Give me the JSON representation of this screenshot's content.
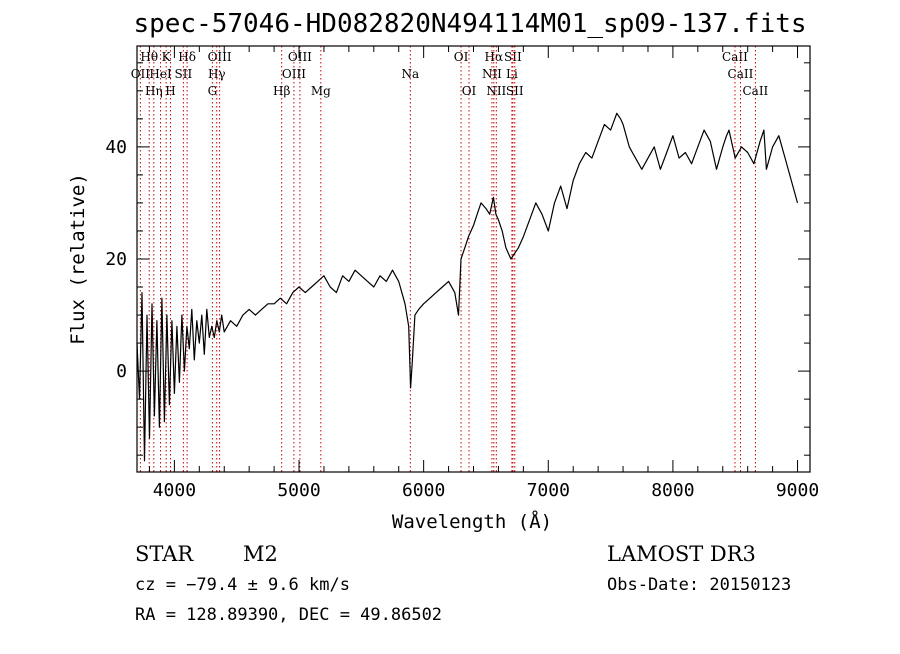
{
  "chart_data": {
    "type": "line",
    "title": "spec-57046-HD082820N494114M01_sp09-137.fits",
    "xlabel": "Wavelength (Å)",
    "ylabel": "Flux (relative)",
    "xlim": [
      3700,
      9100
    ],
    "ylim": [
      -18,
      58
    ],
    "x_ticks": [
      4000,
      5000,
      6000,
      7000,
      8000,
      9000
    ],
    "x_tick_labels": [
      "4000",
      "5000",
      "6000",
      "7000",
      "8000",
      "9000"
    ],
    "y_ticks": [
      0,
      20,
      40
    ],
    "y_tick_labels": [
      "0",
      "20",
      "40"
    ],
    "grid": false,
    "line_color": "#000000",
    "marker_color": "#cc0000",
    "series": [
      {
        "x": [
          3700,
          3720,
          3740,
          3760,
          3780,
          3800,
          3820,
          3840,
          3860,
          3880,
          3900,
          3920,
          3940,
          3960,
          3980,
          4000,
          4020,
          4040,
          4060,
          4080,
          4100,
          4120,
          4140,
          4160,
          4180,
          4200,
          4220,
          4240,
          4260,
          4280,
          4300,
          4320,
          4340,
          4360,
          4380,
          4400,
          4450,
          4500,
          4550,
          4600,
          4650,
          4700,
          4750,
          4800,
          4850,
          4900,
          4950,
          5000,
          5050,
          5100,
          5150,
          5200,
          5250,
          5300,
          5350,
          5400,
          5450,
          5500,
          5550,
          5600,
          5650,
          5700,
          5750,
          5800,
          5850,
          5880,
          5895,
          5910,
          5930,
          5960,
          6000,
          6050,
          6100,
          6150,
          6200,
          6250,
          6280,
          6300,
          6330,
          6360,
          6400,
          6430,
          6460,
          6500,
          6530,
          6560,
          6580,
          6600,
          6630,
          6660,
          6700,
          6730,
          6760,
          6800,
          6850,
          6900,
          6950,
          7000,
          7050,
          7100,
          7150,
          7200,
          7250,
          7300,
          7350,
          7400,
          7450,
          7500,
          7550,
          7580,
          7600,
          7650,
          7700,
          7750,
          7800,
          7850,
          7900,
          7950,
          8000,
          8050,
          8100,
          8150,
          8200,
          8250,
          8300,
          8350,
          8400,
          8430,
          8450,
          8500,
          8550,
          8600,
          8650,
          8700,
          8730,
          8750,
          8800,
          8850,
          8900,
          8950,
          9000
        ],
        "y": [
          5,
          -5,
          14,
          -16,
          10,
          -12,
          12,
          -8,
          9,
          -10,
          13,
          -9,
          10,
          -6,
          9,
          -4,
          8,
          -2,
          10,
          0,
          8,
          4,
          11,
          2,
          9,
          5,
          10,
          3,
          11,
          6,
          8,
          6,
          9,
          7,
          10,
          7,
          9,
          8,
          10,
          11,
          10,
          11,
          12,
          12,
          13,
          12,
          14,
          15,
          14,
          15,
          16,
          17,
          15,
          14,
          17,
          16,
          18,
          17,
          16,
          15,
          17,
          16,
          18,
          16,
          12,
          8,
          -3,
          2,
          10,
          11,
          12,
          13,
          14,
          15,
          16,
          14,
          10,
          20,
          22,
          24,
          26,
          28,
          30,
          29,
          28,
          31,
          28,
          27,
          25,
          22,
          20,
          21,
          22,
          24,
          27,
          30,
          28,
          25,
          30,
          33,
          29,
          34,
          37,
          39,
          38,
          41,
          44,
          43,
          46,
          45,
          44,
          40,
          38,
          36,
          38,
          40,
          36,
          39,
          42,
          38,
          39,
          37,
          40,
          43,
          41,
          36,
          40,
          42,
          43,
          38,
          40,
          39,
          37,
          41,
          43,
          36,
          40,
          42,
          38,
          34,
          30
        ],
        "stroke_width": 1.2
      }
    ],
    "line_markers": [
      {
        "label": "OII",
        "x": 3727,
        "row": 1
      },
      {
        "label": "Hθ",
        "x": 3798,
        "row": 0
      },
      {
        "label": "K",
        "x": 3934,
        "row": 0
      },
      {
        "label": "Hη",
        "x": 3835,
        "row": 2
      },
      {
        "label": "HeI",
        "x": 3889,
        "row": 1
      },
      {
        "label": "H",
        "x": 3969,
        "row": 2
      },
      {
        "label": "SII",
        "x": 4072,
        "row": 1
      },
      {
        "label": "Hδ",
        "x": 4102,
        "row": 0
      },
      {
        "label": "OIII",
        "x": 4363,
        "row": 0
      },
      {
        "label": "Hγ",
        "x": 4340,
        "row": 1
      },
      {
        "label": "G",
        "x": 4305,
        "row": 2
      },
      {
        "label": "OIII",
        "x": 5007,
        "row": 0
      },
      {
        "label": "OIII",
        "x": 4959,
        "row": 1
      },
      {
        "label": "Hβ",
        "x": 4861,
        "row": 2
      },
      {
        "label": "Mg",
        "x": 5175,
        "row": 2
      },
      {
        "label": "Na",
        "x": 5893,
        "row": 1
      },
      {
        "label": "OI",
        "x": 6300,
        "row": 0
      },
      {
        "label": "OI",
        "x": 6364,
        "row": 2
      },
      {
        "label": "Hα",
        "x": 6563,
        "row": 0
      },
      {
        "label": "NII",
        "x": 6548,
        "row": 1
      },
      {
        "label": "NII",
        "x": 6583,
        "row": 2
      },
      {
        "label": "SII",
        "x": 6716,
        "row": 0
      },
      {
        "label": "Li",
        "x": 6708,
        "row": 1
      },
      {
        "label": "SII",
        "x": 6731,
        "row": 2
      },
      {
        "label": "CaII",
        "x": 8498,
        "row": 0
      },
      {
        "label": "CaII",
        "x": 8542,
        "row": 1
      },
      {
        "label": "CaII",
        "x": 8662,
        "row": 2
      }
    ]
  },
  "footer": {
    "object_type": "STAR",
    "subclass": "M2",
    "survey": "LAMOST DR3",
    "cz": "cz = −79.4 ± 9.6 km/s",
    "obs_date": "Obs-Date: 20150123",
    "coords": "RA = 128.89390, DEC =  49.86502"
  }
}
